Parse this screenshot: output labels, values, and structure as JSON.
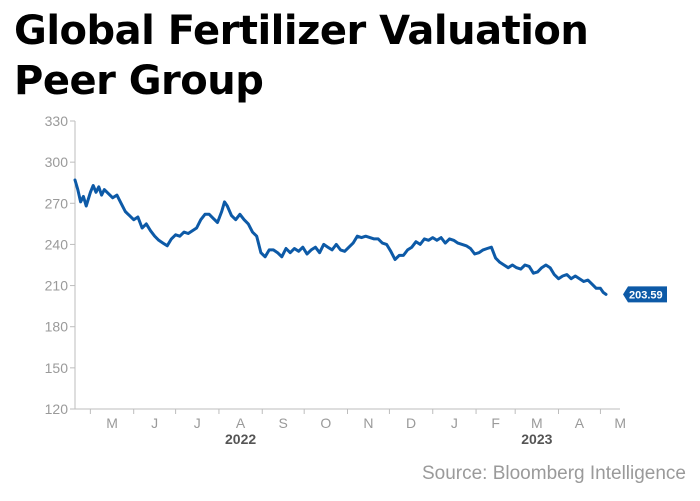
{
  "title": "Global Fertilizer Valuation Peer Group",
  "source": "Source: Bloomberg Intelligence",
  "colors": {
    "line": "#0d5aa7",
    "axis": "#bdbdbd",
    "tick_text": "#9a9a9a",
    "year_text": "#555555",
    "end_label_bg": "#0d5aa7"
  },
  "chart_data": {
    "type": "line",
    "title": "Global Fertilizer Valuation Peer Group",
    "xlabel": "",
    "ylabel": "",
    "ylim": [
      120,
      330
    ],
    "xlim": [
      "2022-04-20",
      "2023-05-15"
    ],
    "yticks": [
      120,
      150,
      180,
      210,
      240,
      270,
      300,
      330
    ],
    "xticks": [
      {
        "label": "M",
        "date": "2022-05-01"
      },
      {
        "label": "J",
        "date": "2022-06-01"
      },
      {
        "label": "J",
        "date": "2022-07-01"
      },
      {
        "label": "A",
        "date": "2022-08-01"
      },
      {
        "label": "S",
        "date": "2022-09-01"
      },
      {
        "label": "O",
        "date": "2022-10-01"
      },
      {
        "label": "N",
        "date": "2022-11-01"
      },
      {
        "label": "D",
        "date": "2022-12-01"
      },
      {
        "label": "J",
        "date": "2023-01-01"
      },
      {
        "label": "F",
        "date": "2023-02-01"
      },
      {
        "label": "M",
        "date": "2023-03-01"
      },
      {
        "label": "A",
        "date": "2023-04-01"
      },
      {
        "label": "M",
        "date": "2023-05-01"
      }
    ],
    "year_labels": [
      {
        "label": "2022",
        "date": "2022-08-01"
      },
      {
        "label": "2023",
        "date": "2023-03-01"
      }
    ],
    "grid": false,
    "end_label": "203.59",
    "series": [
      {
        "values": [
          [
            "2022-04-20",
            287
          ],
          [
            "2022-04-22",
            280
          ],
          [
            "2022-04-24",
            271
          ],
          [
            "2022-04-26",
            275
          ],
          [
            "2022-04-28",
            268
          ],
          [
            "2022-05-01",
            278
          ],
          [
            "2022-05-03",
            283
          ],
          [
            "2022-05-05",
            278
          ],
          [
            "2022-05-07",
            282
          ],
          [
            "2022-05-09",
            276
          ],
          [
            "2022-05-11",
            280
          ],
          [
            "2022-05-14",
            277
          ],
          [
            "2022-05-17",
            274
          ],
          [
            "2022-05-20",
            276
          ],
          [
            "2022-05-23",
            270
          ],
          [
            "2022-05-26",
            264
          ],
          [
            "2022-05-29",
            261
          ],
          [
            "2022-06-01",
            258
          ],
          [
            "2022-06-04",
            260
          ],
          [
            "2022-06-07",
            252
          ],
          [
            "2022-06-10",
            255
          ],
          [
            "2022-06-13",
            250
          ],
          [
            "2022-06-16",
            246
          ],
          [
            "2022-06-19",
            243
          ],
          [
            "2022-06-22",
            241
          ],
          [
            "2022-06-25",
            239
          ],
          [
            "2022-06-28",
            244
          ],
          [
            "2022-07-01",
            247
          ],
          [
            "2022-07-04",
            246
          ],
          [
            "2022-07-07",
            249
          ],
          [
            "2022-07-10",
            248
          ],
          [
            "2022-07-13",
            250
          ],
          [
            "2022-07-16",
            252
          ],
          [
            "2022-07-19",
            258
          ],
          [
            "2022-07-22",
            262
          ],
          [
            "2022-07-25",
            262
          ],
          [
            "2022-07-28",
            259
          ],
          [
            "2022-07-31",
            256
          ],
          [
            "2022-08-03",
            264
          ],
          [
            "2022-08-05",
            271
          ],
          [
            "2022-08-07",
            268
          ],
          [
            "2022-08-10",
            261
          ],
          [
            "2022-08-13",
            258
          ],
          [
            "2022-08-16",
            262
          ],
          [
            "2022-08-19",
            258
          ],
          [
            "2022-08-22",
            255
          ],
          [
            "2022-08-25",
            249
          ],
          [
            "2022-08-28",
            246
          ],
          [
            "2022-08-31",
            234
          ],
          [
            "2022-09-03",
            231
          ],
          [
            "2022-09-06",
            236
          ],
          [
            "2022-09-09",
            236
          ],
          [
            "2022-09-12",
            234
          ],
          [
            "2022-09-15",
            231
          ],
          [
            "2022-09-18",
            237
          ],
          [
            "2022-09-21",
            234
          ],
          [
            "2022-09-24",
            237
          ],
          [
            "2022-09-27",
            235
          ],
          [
            "2022-09-30",
            238
          ],
          [
            "2022-10-03",
            233
          ],
          [
            "2022-10-06",
            236
          ],
          [
            "2022-10-09",
            238
          ],
          [
            "2022-10-12",
            234
          ],
          [
            "2022-10-15",
            240
          ],
          [
            "2022-10-18",
            238
          ],
          [
            "2022-10-21",
            236
          ],
          [
            "2022-10-24",
            240
          ],
          [
            "2022-10-27",
            236
          ],
          [
            "2022-10-30",
            235
          ],
          [
            "2022-11-02",
            238
          ],
          [
            "2022-11-05",
            241
          ],
          [
            "2022-11-08",
            246
          ],
          [
            "2022-11-11",
            245
          ],
          [
            "2022-11-14",
            246
          ],
          [
            "2022-11-17",
            245
          ],
          [
            "2022-11-20",
            244
          ],
          [
            "2022-11-23",
            244
          ],
          [
            "2022-11-26",
            241
          ],
          [
            "2022-11-29",
            240
          ],
          [
            "2022-12-02",
            235
          ],
          [
            "2022-12-05",
            229
          ],
          [
            "2022-12-08",
            232
          ],
          [
            "2022-12-11",
            232
          ],
          [
            "2022-12-14",
            236
          ],
          [
            "2022-12-17",
            238
          ],
          [
            "2022-12-20",
            242
          ],
          [
            "2022-12-23",
            240
          ],
          [
            "2022-12-26",
            244
          ],
          [
            "2022-12-29",
            243
          ],
          [
            "2023-01-01",
            245
          ],
          [
            "2023-01-04",
            243
          ],
          [
            "2023-01-07",
            245
          ],
          [
            "2023-01-10",
            241
          ],
          [
            "2023-01-13",
            244
          ],
          [
            "2023-01-16",
            243
          ],
          [
            "2023-01-19",
            241
          ],
          [
            "2023-01-22",
            240
          ],
          [
            "2023-01-25",
            239
          ],
          [
            "2023-01-28",
            237
          ],
          [
            "2023-01-31",
            233
          ],
          [
            "2023-02-03",
            234
          ],
          [
            "2023-02-06",
            236
          ],
          [
            "2023-02-09",
            237
          ],
          [
            "2023-02-12",
            238
          ],
          [
            "2023-02-15",
            230
          ],
          [
            "2023-02-18",
            227
          ],
          [
            "2023-02-21",
            225
          ],
          [
            "2023-02-24",
            223
          ],
          [
            "2023-02-27",
            225
          ],
          [
            "2023-03-02",
            223
          ],
          [
            "2023-03-05",
            222
          ],
          [
            "2023-03-08",
            225
          ],
          [
            "2023-03-11",
            224
          ],
          [
            "2023-03-14",
            219
          ],
          [
            "2023-03-17",
            220
          ],
          [
            "2023-03-20",
            223
          ],
          [
            "2023-03-23",
            225
          ],
          [
            "2023-03-26",
            223
          ],
          [
            "2023-03-29",
            218
          ],
          [
            "2023-04-01",
            215
          ],
          [
            "2023-04-04",
            217
          ],
          [
            "2023-04-07",
            218
          ],
          [
            "2023-04-10",
            215
          ],
          [
            "2023-04-13",
            217
          ],
          [
            "2023-04-16",
            215
          ],
          [
            "2023-04-19",
            213
          ],
          [
            "2023-04-22",
            214
          ],
          [
            "2023-04-25",
            211
          ],
          [
            "2023-04-28",
            208
          ],
          [
            "2023-05-01",
            208
          ],
          [
            "2023-05-03",
            205
          ],
          [
            "2023-05-05",
            203.59
          ]
        ]
      }
    ]
  }
}
